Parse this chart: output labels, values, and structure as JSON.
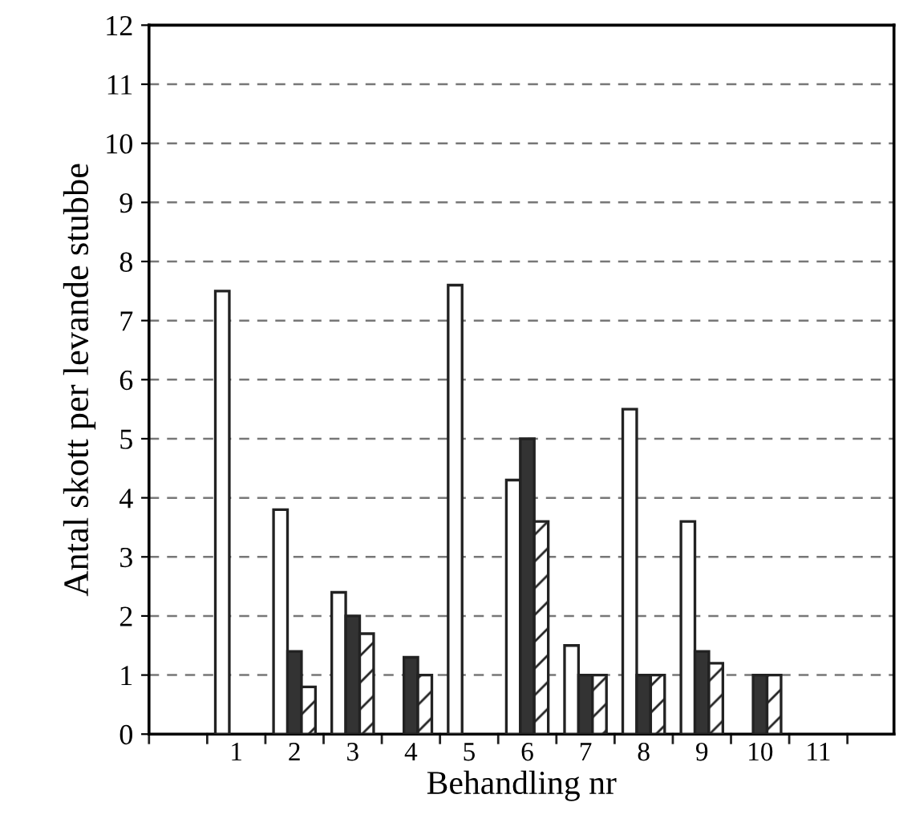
{
  "chart_data": {
    "type": "bar",
    "xlabel": "Behandling nr",
    "ylabel": "Antal skott per levande stubbe",
    "categories": [
      null,
      "1",
      "2",
      "3",
      "4",
      "5",
      "6",
      "7",
      "8",
      "9",
      "10",
      "11"
    ],
    "series": [
      {
        "color": "#ffffff",
        "values": [
          null,
          7.5,
          3.8,
          2.4,
          null,
          7.6,
          4.3,
          1.5,
          5.5,
          3.6,
          null,
          null
        ]
      },
      {
        "color": "#333333",
        "values": [
          null,
          null,
          1.4,
          2.0,
          1.3,
          null,
          5.0,
          1.0,
          1.0,
          1.4,
          1.0,
          null
        ]
      },
      {
        "color": "#222222",
        "values": [
          null,
          null,
          0.8,
          1.7,
          1.0,
          null,
          3.6,
          1.0,
          1.0,
          1.2,
          1.0,
          null
        ]
      }
    ],
    "ylim": [
      0,
      12
    ],
    "yticks": [
      0,
      1,
      2,
      3,
      4,
      5,
      6,
      7,
      8,
      9,
      10,
      11,
      12
    ],
    "grid": "y"
  }
}
